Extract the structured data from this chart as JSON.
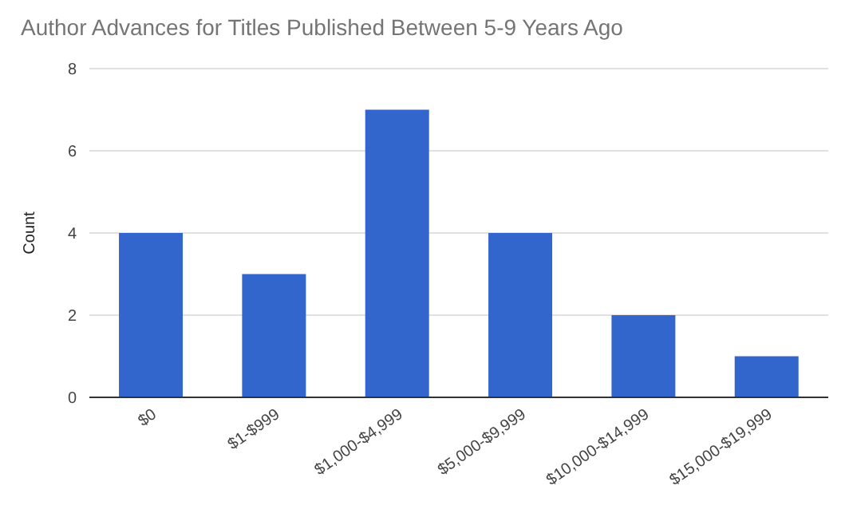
{
  "chart_data": {
    "type": "bar",
    "title": "Author Advances for Titles Published Between 5-9 Years Ago",
    "ylabel": "Count",
    "categories": [
      "$0",
      "$1-$999",
      "$1,000-$4,999",
      "$5,000-$9,999",
      "$10,000-$14,999",
      "$15,000-$19,999"
    ],
    "values": [
      4,
      3,
      7,
      4,
      2,
      1
    ],
    "color": "#3366cc",
    "ylim": [
      0,
      8
    ],
    "yticks": [
      0,
      2,
      4,
      6,
      8
    ],
    "grid": "y"
  }
}
